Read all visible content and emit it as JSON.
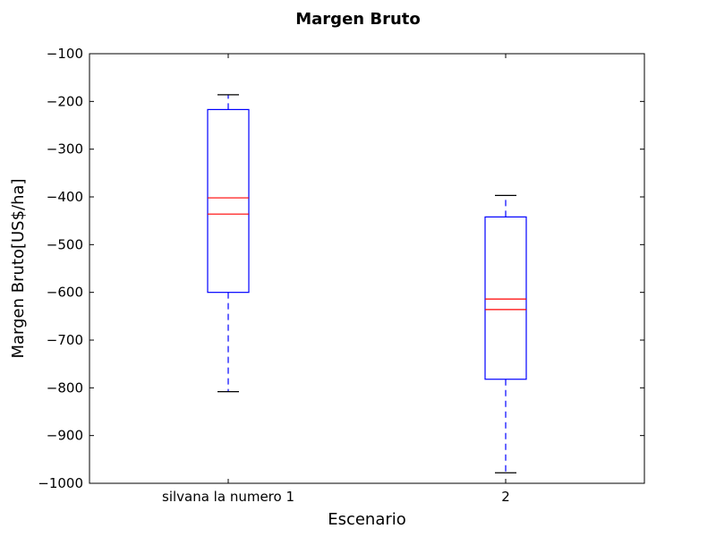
{
  "chart_data": {
    "type": "box",
    "title": "Margen Bruto",
    "xlabel": "Escenario",
    "ylabel": "Margen Bruto[US$/ha]",
    "ylim": [
      -1000,
      -100
    ],
    "yticks": [
      -100,
      -200,
      -300,
      -400,
      -500,
      -600,
      -700,
      -800,
      -900,
      -1000
    ],
    "ytick_labels": [
      "−100",
      "−200",
      "−300",
      "−400",
      "−500",
      "−600",
      "−700",
      "−800",
      "−900",
      "−1000"
    ],
    "categories": [
      "silvana la numero 1",
      "2"
    ],
    "boxes": [
      {
        "category": "silvana la numero 1",
        "whisker_low": -808,
        "q1": -600,
        "median": -436,
        "mean": -402,
        "q3": -217,
        "whisker_high": -186
      },
      {
        "category": "2",
        "whisker_low": -978,
        "q1": -782,
        "median": -636,
        "mean": -614,
        "q3": -442,
        "whisker_high": -397
      }
    ],
    "grid": false,
    "colors": {
      "box": "#0000ff",
      "median": "#ff0000",
      "whisker": "#0000ff",
      "cap": "#000000",
      "axes": "#000000"
    }
  }
}
